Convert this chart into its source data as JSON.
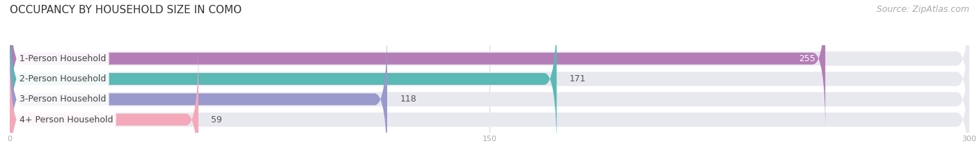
{
  "title": "OCCUPANCY BY HOUSEHOLD SIZE IN COMO",
  "source": "Source: ZipAtlas.com",
  "categories": [
    "1-Person Household",
    "2-Person Household",
    "3-Person Household",
    "4+ Person Household"
  ],
  "values": [
    255,
    171,
    118,
    59
  ],
  "bar_colors": [
    "#b57db8",
    "#5ab8b5",
    "#9999cc",
    "#f4a8ba"
  ],
  "xlim": [
    0,
    300
  ],
  "xticks": [
    0,
    150,
    300
  ],
  "title_fontsize": 11,
  "source_fontsize": 9,
  "label_fontsize": 9,
  "value_fontsize": 9,
  "background_color": "#ffffff",
  "bar_height": 0.58,
  "bar_bg_color": "#e8e8ef"
}
